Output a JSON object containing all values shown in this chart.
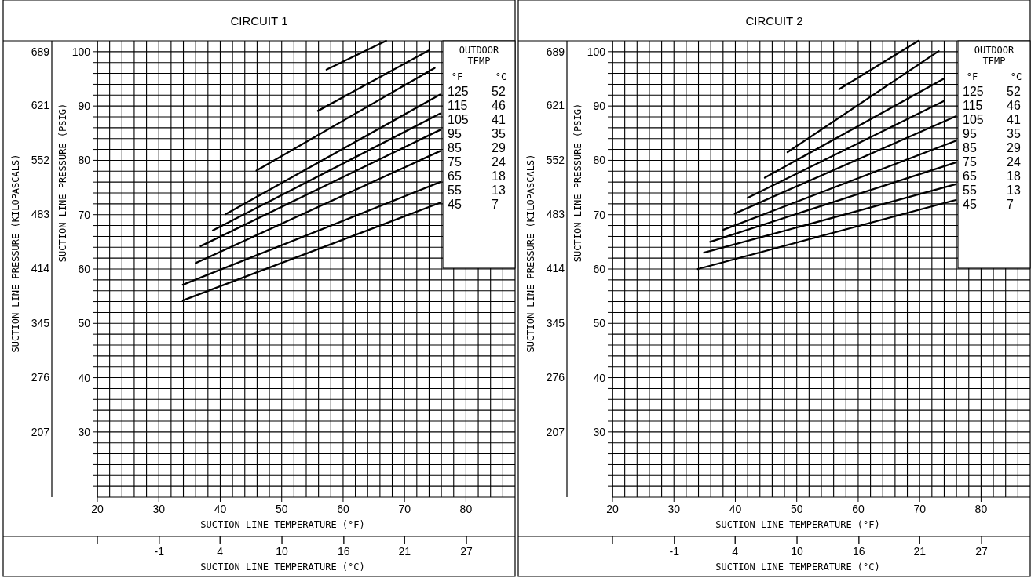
{
  "chart_data": [
    {
      "type": "line",
      "title": "CIRCUIT 1",
      "xlabel": "SUCTION LINE TEMPERATURE (°F)",
      "x2label": "SUCTION LINE TEMPERATURE (°C)",
      "ylabel": "SUCTION LINE PRESSURE (PSIG)",
      "y2label": "SUCTION LINE PRESSURE (KILOPASCALS)",
      "legend_title": "OUTDOOR TEMP",
      "annotations": [
        "°F",
        "°C"
      ],
      "grid": true,
      "xlim": [
        20,
        88
      ],
      "xticks": [
        20,
        {
          "value": 22,
          "label": null
        },
        {
          "value": 24,
          "label": null
        },
        {
          "value": 26,
          "label": null
        },
        {
          "value": 28,
          "label": null
        },
        30,
        {
          "value": 32,
          "label": null
        },
        {
          "value": 34,
          "label": null
        },
        {
          "value": 36,
          "label": null
        },
        {
          "value": 38,
          "label": null
        },
        40,
        {
          "value": 42,
          "label": null
        },
        {
          "value": 44,
          "label": null
        },
        {
          "value": 46,
          "label": null
        },
        {
          "value": 48,
          "label": null
        },
        50,
        {
          "value": 52,
          "label": null
        },
        {
          "value": 54,
          "label": null
        },
        {
          "value": 56,
          "label": null
        },
        {
          "value": 58,
          "label": null
        },
        60,
        {
          "value": 62,
          "label": null
        },
        {
          "value": 64,
          "label": null
        },
        {
          "value": 66,
          "label": null
        },
        {
          "value": 68,
          "label": null
        },
        70,
        {
          "value": 72,
          "label": null
        },
        {
          "value": 74,
          "label": null
        },
        {
          "value": 76,
          "label": null
        },
        {
          "value": 78,
          "label": null
        },
        80,
        {
          "value": 82,
          "label": null
        },
        {
          "value": 84,
          "label": null
        },
        {
          "value": 86,
          "label": null
        }
      ],
      "x2lim": [
        -6.7,
        31.1
      ],
      "x2ticks": [
        {
          "value": -6.7,
          "label": null
        },
        {
          "value": -1.1,
          "label": "-1"
        },
        {
          "value": 4.4,
          "label": "4"
        },
        10,
        {
          "value": 15.6,
          "label": "16"
        },
        {
          "value": 21.1,
          "label": "21"
        },
        {
          "value": 26.7,
          "label": "27"
        }
      ],
      "ylim": [
        18,
        102
      ],
      "yticks": [
        {
          "value": 20,
          "label": null
        },
        {
          "value": 22,
          "label": null
        },
        {
          "value": 24,
          "label": null
        },
        {
          "value": 26,
          "label": null
        },
        {
          "value": 28,
          "label": null
        },
        30,
        {
          "value": 32,
          "label": null
        },
        {
          "value": 34,
          "label": null
        },
        {
          "value": 36,
          "label": null
        },
        {
          "value": 38,
          "label": null
        },
        40,
        {
          "value": 42,
          "label": null
        },
        {
          "value": 44,
          "label": null
        },
        {
          "value": 46,
          "label": null
        },
        {
          "value": 48,
          "label": null
        },
        50,
        {
          "value": 52,
          "label": null
        },
        {
          "value": 54,
          "label": null
        },
        {
          "value": 56,
          "label": null
        },
        {
          "value": 58,
          "label": null
        },
        60,
        {
          "value": 62,
          "label": null
        },
        {
          "value": 64,
          "label": null
        },
        {
          "value": 66,
          "label": null
        },
        {
          "value": 68,
          "label": null
        },
        70,
        {
          "value": 72,
          "label": null
        },
        {
          "value": 74,
          "label": null
        },
        {
          "value": 76,
          "label": null
        },
        {
          "value": 78,
          "label": null
        },
        80,
        {
          "value": 82,
          "label": null
        },
        {
          "value": 84,
          "label": null
        },
        {
          "value": 86,
          "label": null
        },
        {
          "value": 88,
          "label": null
        },
        90,
        {
          "value": 92,
          "label": null
        },
        {
          "value": 94,
          "label": null
        },
        {
          "value": 96,
          "label": null
        },
        {
          "value": 98,
          "label": null
        },
        100
      ],
      "y2lim": [
        124,
        703
      ],
      "y2ticks": [
        689,
        621,
        552,
        483,
        414,
        345,
        276,
        207
      ],
      "series": [
        {
          "name": "125 52",
          "color": "#000000",
          "x": [
            57.3,
            67.0
          ],
          "values": [
            96.7,
            102
          ]
        },
        {
          "name": "115 46",
          "color": "#000000",
          "x": [
            55.9,
            73.9
          ],
          "values": [
            89.1,
            100.2
          ]
        },
        {
          "name": "105 41",
          "color": "#000000",
          "x": [
            45.9,
            74.9
          ],
          "values": [
            78.1,
            97.0
          ]
        },
        {
          "name": "95 35",
          "color": "#000000",
          "x": [
            40.9,
            75.8
          ],
          "values": [
            70.1,
            92.1
          ]
        },
        {
          "name": "85 29",
          "color": "#000000",
          "x": [
            38.8,
            75.8
          ],
          "values": [
            67.1,
            88.6
          ]
        },
        {
          "name": "75 24",
          "color": "#000000",
          "x": [
            36.8,
            75.8
          ],
          "values": [
            64.2,
            85.6
          ]
        },
        {
          "name": "65 18",
          "color": "#000000",
          "x": [
            36.0,
            75.8
          ],
          "values": [
            61.1,
            81.7
          ]
        },
        {
          "name": "55 13",
          "color": "#000000",
          "x": [
            33.9,
            75.8
          ],
          "values": [
            57.1,
            76.0
          ]
        },
        {
          "name": "45 7",
          "color": "#000000",
          "x": [
            33.9,
            75.8
          ],
          "values": [
            54.2,
            72.2
          ]
        }
      ]
    },
    {
      "type": "line",
      "title": "CIRCUIT 2",
      "xlabel": "SUCTION LINE TEMPERATURE (°F)",
      "x2label": "SUCTION LINE TEMPERATURE (°C)",
      "ylabel": "SUCTION LINE PRESSURE (PSIG)",
      "y2label": "SUCTION LINE PRESSURE (KILOPASCALS)",
      "legend_title": "OUTDOOR TEMP",
      "annotations": [
        "°F",
        "°C"
      ],
      "grid": true,
      "xlim": [
        20,
        88
      ],
      "xticks": [
        20,
        {
          "value": 22,
          "label": null
        },
        {
          "value": 24,
          "label": null
        },
        {
          "value": 26,
          "label": null
        },
        {
          "value": 28,
          "label": null
        },
        30,
        {
          "value": 32,
          "label": null
        },
        {
          "value": 34,
          "label": null
        },
        {
          "value": 36,
          "label": null
        },
        {
          "value": 38,
          "label": null
        },
        40,
        {
          "value": 42,
          "label": null
        },
        {
          "value": 44,
          "label": null
        },
        {
          "value": 46,
          "label": null
        },
        {
          "value": 48,
          "label": null
        },
        50,
        {
          "value": 52,
          "label": null
        },
        {
          "value": 54,
          "label": null
        },
        {
          "value": 56,
          "label": null
        },
        {
          "value": 58,
          "label": null
        },
        60,
        {
          "value": 62,
          "label": null
        },
        {
          "value": 64,
          "label": null
        },
        {
          "value": 66,
          "label": null
        },
        {
          "value": 68,
          "label": null
        },
        70,
        {
          "value": 72,
          "label": null
        },
        {
          "value": 74,
          "label": null
        },
        {
          "value": 76,
          "label": null
        },
        {
          "value": 78,
          "label": null
        },
        80,
        {
          "value": 82,
          "label": null
        },
        {
          "value": 84,
          "label": null
        },
        {
          "value": 86,
          "label": null
        }
      ],
      "x2lim": [
        -6.7,
        31.1
      ],
      "x2ticks": [
        {
          "value": -6.7,
          "label": null
        },
        {
          "value": -1.1,
          "label": "-1"
        },
        {
          "value": 4.4,
          "label": "4"
        },
        10,
        {
          "value": 15.6,
          "label": "16"
        },
        {
          "value": 21.1,
          "label": "21"
        },
        {
          "value": 26.7,
          "label": "27"
        }
      ],
      "ylim": [
        18,
        102
      ],
      "yticks": [
        {
          "value": 20,
          "label": null
        },
        {
          "value": 22,
          "label": null
        },
        {
          "value": 24,
          "label": null
        },
        {
          "value": 26,
          "label": null
        },
        {
          "value": 28,
          "label": null
        },
        30,
        {
          "value": 32,
          "label": null
        },
        {
          "value": 34,
          "label": null
        },
        {
          "value": 36,
          "label": null
        },
        {
          "value": 38,
          "label": null
        },
        40,
        {
          "value": 42,
          "label": null
        },
        {
          "value": 44,
          "label": null
        },
        {
          "value": 46,
          "label": null
        },
        {
          "value": 48,
          "label": null
        },
        50,
        {
          "value": 52,
          "label": null
        },
        {
          "value": 54,
          "label": null
        },
        {
          "value": 56,
          "label": null
        },
        {
          "value": 58,
          "label": null
        },
        60,
        {
          "value": 62,
          "label": null
        },
        {
          "value": 64,
          "label": null
        },
        {
          "value": 66,
          "label": null
        },
        {
          "value": 68,
          "label": null
        },
        70,
        {
          "value": 72,
          "label": null
        },
        {
          "value": 74,
          "label": null
        },
        {
          "value": 76,
          "label": null
        },
        {
          "value": 78,
          "label": null
        },
        80,
        {
          "value": 82,
          "label": null
        },
        {
          "value": 84,
          "label": null
        },
        {
          "value": 86,
          "label": null
        },
        {
          "value": 88,
          "label": null
        },
        90,
        {
          "value": 92,
          "label": null
        },
        {
          "value": 94,
          "label": null
        },
        {
          "value": 96,
          "label": null
        },
        {
          "value": 98,
          "label": null
        },
        100
      ],
      "y2lim": [
        124,
        703
      ],
      "y2ticks": [
        689,
        621,
        552,
        483,
        414,
        345,
        276,
        207
      ],
      "series": [
        {
          "name": "125 52",
          "color": "#000000",
          "x": [
            56.9,
            69.8
          ],
          "values": [
            93.1,
            102
          ]
        },
        {
          "name": "115 46",
          "color": "#000000",
          "x": [
            48.5,
            73.1
          ],
          "values": [
            81.5,
            100.1
          ]
        },
        {
          "name": "105 41",
          "color": "#000000",
          "x": [
            44.8,
            73.9
          ],
          "values": [
            76.8,
            95.0
          ]
        },
        {
          "name": "95 35",
          "color": "#000000",
          "x": [
            42.0,
            73.9
          ],
          "values": [
            73.1,
            90.9
          ]
        },
        {
          "name": "85 29",
          "color": "#000000",
          "x": [
            39.9,
            75.9
          ],
          "values": [
            70.2,
            88.1
          ]
        },
        {
          "name": "75 24",
          "color": "#000000",
          "x": [
            38.0,
            75.9
          ],
          "values": [
            67.2,
            83.6
          ]
        },
        {
          "name": "65 18",
          "color": "#000000",
          "x": [
            35.9,
            75.9
          ],
          "values": [
            65.0,
            79.6
          ]
        },
        {
          "name": "55 13",
          "color": "#000000",
          "x": [
            34.9,
            75.9
          ],
          "values": [
            63.0,
            75.6
          ]
        },
        {
          "name": "45 7",
          "color": "#000000",
          "x": [
            33.9,
            75.9
          ],
          "values": [
            60.0,
            72.7
          ]
        }
      ]
    }
  ]
}
